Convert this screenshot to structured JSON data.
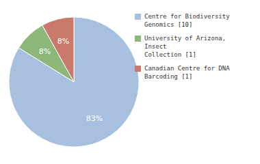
{
  "chart_data": {
    "type": "pie",
    "labels": [
      "Centre for Biodiversity\nGenomics [10]",
      "University of Arizona, Insect\nCollection [1]",
      "Canadian Centre for DNA\nBarcoding [1]"
    ],
    "values": [
      83,
      8,
      8
    ],
    "value_labels": [
      "83%",
      "8%",
      "8%"
    ],
    "colors": [
      "#a8c0e0",
      "#8db87a",
      "#c97a6a"
    ],
    "data_labels": true,
    "legend": "right"
  }
}
